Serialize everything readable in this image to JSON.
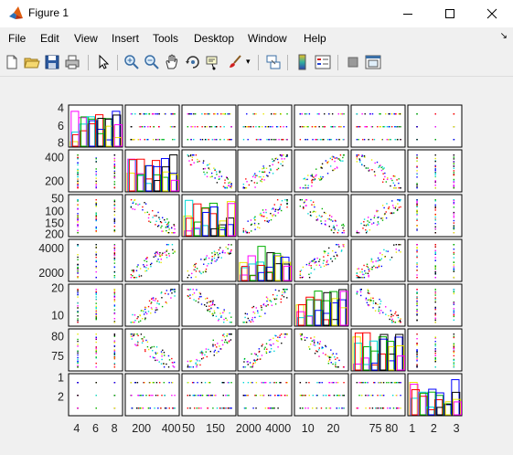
{
  "window": {
    "title": "Figure 1"
  },
  "menu": [
    "File",
    "Edit",
    "View",
    "Insert",
    "Tools",
    "Desktop",
    "Window",
    "Help"
  ],
  "toolbar": {
    "icons": [
      "new-figure-icon",
      "open-file-icon",
      "save-icon",
      "print-icon",
      "pointer-icon",
      "zoom-in-icon",
      "zoom-out-icon",
      "pan-icon",
      "rotate-3d-icon",
      "data-cursor-icon",
      "brush-icon",
      "link-plot-icon",
      "colorbar-icon",
      "legend-icon",
      "hide-plot-tools-icon",
      "show-plot-tools-icon"
    ]
  },
  "chart_data": {
    "type": "scatter-matrix",
    "variables": 7,
    "series_colors": [
      "#e8e800",
      "#ff00ff",
      "#00d8d8",
      "#ff0000",
      "#00b000",
      "#0000ff",
      "#000000"
    ],
    "row_tick_labels": [
      [
        "4",
        "6",
        "8"
      ],
      [
        "200",
        "400"
      ],
      [
        "50",
        "100",
        "150",
        "200"
      ],
      [
        "2000",
        "4000"
      ],
      [
        "10",
        "20"
      ],
      [
        "75",
        "80"
      ],
      [
        "1",
        "2"
      ]
    ],
    "col_tick_labels": [
      [
        "4",
        "6",
        "8"
      ],
      [
        "200",
        "400"
      ],
      [
        "50",
        "150"
      ],
      [
        "2000",
        "4000"
      ],
      [
        "10",
        "20"
      ],
      [
        "75",
        "80"
      ],
      [
        "1",
        "2",
        "3"
      ]
    ]
  }
}
